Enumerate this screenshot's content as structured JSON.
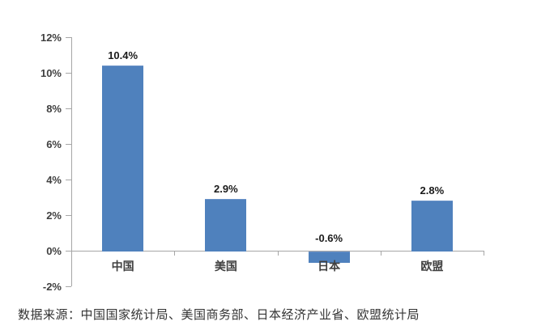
{
  "chart_data": {
    "type": "bar",
    "categories": [
      "中国",
      "美国",
      "日本",
      "欧盟"
    ],
    "values": [
      10.4,
      2.9,
      -0.6,
      2.8
    ],
    "value_labels": [
      "10.4%",
      "2.9%",
      "-0.6%",
      "2.8%"
    ],
    "title": "",
    "xlabel": "",
    "ylabel": "",
    "ylim": [
      -2,
      12
    ],
    "ytick_step": 2,
    "yticks": [
      "12%",
      "10%",
      "8%",
      "6%",
      "4%",
      "2%",
      "0%",
      "-2%"
    ],
    "grid": false,
    "legend": false,
    "bar_color": "#4F81BD",
    "axis_color": "#A6A6A6",
    "label_color": "#404040"
  },
  "footer": {
    "source_note": "数据来源：中国国家统计局、美国商务部、日本经济产业省、欧盟统计局"
  }
}
